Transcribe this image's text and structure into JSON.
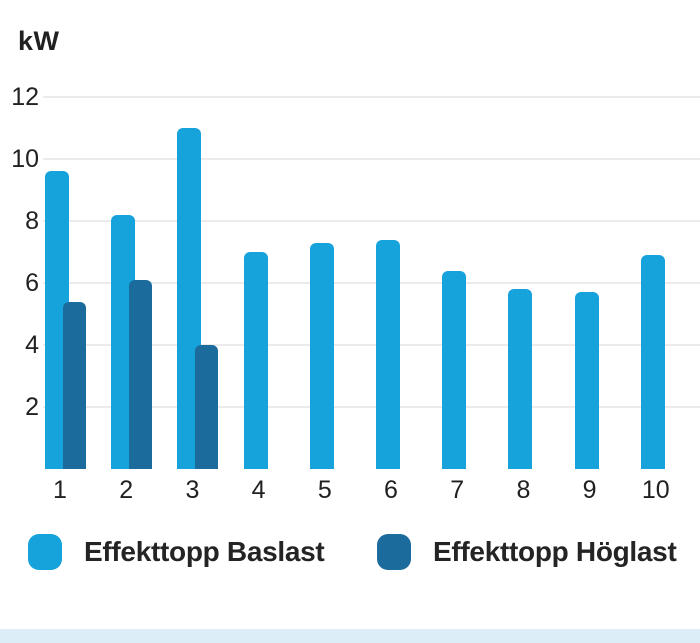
{
  "chart": {
    "unit_label": "kW",
    "colors": {
      "baslast": "#16a2db",
      "hoglast": "#1c6b9d",
      "gridline": "#ebebeb",
      "text": "#212121",
      "bottom_sheet": "#dcedf8"
    }
  },
  "chart_data": {
    "type": "bar",
    "title": "",
    "ylabel": "kW",
    "xlabel": "",
    "categories": [
      "1",
      "2",
      "3",
      "4",
      "5",
      "6",
      "7",
      "8",
      "9",
      "10"
    ],
    "series": [
      {
        "name": "Effekttopp Baslast",
        "color": "#16a2db",
        "values": [
          9.6,
          8.2,
          11.0,
          7.0,
          7.3,
          7.4,
          6.4,
          5.8,
          5.7,
          6.9
        ]
      },
      {
        "name": "Effekttopp Höglast",
        "color": "#1c6b9d",
        "values": [
          5.4,
          6.1,
          4.0,
          null,
          null,
          null,
          null,
          null,
          null,
          null
        ]
      }
    ],
    "ylim": [
      0,
      12
    ],
    "yticks": [
      2,
      4,
      6,
      8,
      10,
      12
    ],
    "grid": true,
    "legend_position": "bottom"
  }
}
